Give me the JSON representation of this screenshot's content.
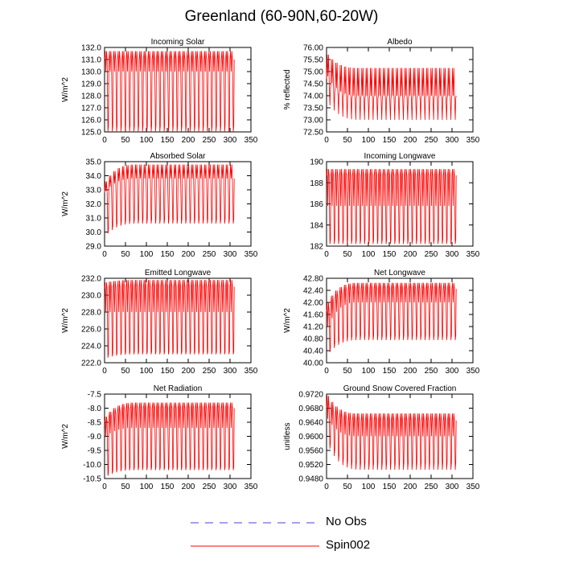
{
  "figure": {
    "title": "Greenland (60-90N,60-20W)"
  },
  "legend": [
    {
      "label": "No Obs",
      "color": "#4444cc",
      "style": "dashed"
    },
    {
      "label": "Spin002",
      "color": "#ff0000",
      "style": "solid"
    }
  ],
  "chart_data": [
    {
      "type": "line",
      "title": "Incoming Solar",
      "xlabel": "",
      "ylabel": "W/m^2",
      "xlim": [
        0,
        350
      ],
      "ylim": [
        125,
        132
      ],
      "yticks": [
        125,
        126,
        127,
        128,
        129,
        130,
        131,
        132
      ],
      "ytick_decimals": 1,
      "xticks": [
        0,
        50,
        100,
        150,
        200,
        250,
        300,
        350
      ],
      "series": [
        {
          "name": "Spin002",
          "color": "#ff0000",
          "cycles": 30,
          "x_end": 310,
          "peak_high": [
            131.7,
            131.7
          ],
          "peak_low": [
            131.0,
            131.0
          ],
          "trough_high": [
            125.5,
            125.5
          ],
          "trough_low": [
            125.0,
            125.0
          ],
          "mid_low": [
            130.0,
            130.0
          ]
        }
      ]
    },
    {
      "type": "line",
      "title": "Albedo",
      "xlabel": "",
      "ylabel": "% reflected",
      "xlim": [
        0,
        350
      ],
      "ylim": [
        72.5,
        76.0
      ],
      "yticks": [
        72.5,
        73.0,
        73.5,
        74.0,
        74.5,
        75.0,
        75.5,
        76.0
      ],
      "ytick_decimals": 2,
      "xticks": [
        0,
        50,
        100,
        150,
        200,
        250,
        300,
        350
      ],
      "series": [
        {
          "name": "Spin002",
          "color": "#ff0000",
          "cycles": 30,
          "x_end": 310,
          "peak_high": [
            75.7,
            75.15
          ],
          "peak_low": [
            74.7,
            74.0
          ],
          "trough_high": [
            74.3,
            73.9
          ],
          "trough_low": [
            73.6,
            73.0
          ],
          "mid_low": [
            74.8,
            74.0
          ]
        }
      ]
    },
    {
      "type": "line",
      "title": "Absorbed Solar",
      "xlabel": "",
      "ylabel": "W/m^2",
      "xlim": [
        0,
        350
      ],
      "ylim": [
        29,
        35
      ],
      "yticks": [
        29,
        30,
        31,
        32,
        33,
        34,
        35
      ],
      "ytick_decimals": 1,
      "xticks": [
        0,
        50,
        100,
        150,
        200,
        250,
        300,
        350
      ],
      "series": [
        {
          "name": "Spin002",
          "color": "#ff0000",
          "cycles": 30,
          "x_end": 310,
          "peak_high": [
            33.6,
            34.8
          ],
          "peak_low": [
            32.8,
            33.8
          ],
          "trough_high": [
            30.2,
            30.9
          ],
          "trough_low": [
            29.9,
            30.6
          ],
          "mid_low": [
            32.9,
            33.8
          ]
        }
      ]
    },
    {
      "type": "line",
      "title": "Incoming Longwave",
      "xlabel": "",
      "ylabel": "",
      "xlim": [
        0,
        350
      ],
      "ylim": [
        182,
        190
      ],
      "yticks": [
        182,
        184,
        186,
        188,
        190
      ],
      "ytick_decimals": 0,
      "xticks": [
        0,
        50,
        100,
        150,
        200,
        250,
        300,
        350
      ],
      "series": [
        {
          "name": "Spin002",
          "color": "#ff0000",
          "cycles": 30,
          "x_end": 310,
          "peak_high": [
            189.3,
            189.3
          ],
          "peak_low": [
            188.7,
            188.7
          ],
          "trough_high": [
            182.6,
            182.6
          ],
          "trough_low": [
            182.2,
            182.2
          ],
          "mid_low": [
            185.8,
            185.8
          ]
        }
      ]
    },
    {
      "type": "line",
      "title": "Emitted Longwave",
      "xlabel": "",
      "ylabel": "W/m^2",
      "xlim": [
        0,
        350
      ],
      "ylim": [
        222,
        232
      ],
      "yticks": [
        222,
        224,
        226,
        228,
        230,
        232
      ],
      "ytick_decimals": 1,
      "xticks": [
        0,
        50,
        100,
        150,
        200,
        250,
        300,
        350
      ],
      "series": [
        {
          "name": "Spin002",
          "color": "#ff0000",
          "cycles": 30,
          "x_end": 310,
          "peak_high": [
            231.5,
            231.8
          ],
          "peak_low": [
            230.8,
            231.0
          ],
          "trough_high": [
            223.0,
            223.3
          ],
          "trough_low": [
            222.6,
            223.0
          ],
          "mid_low": [
            228.0,
            228.0
          ]
        }
      ]
    },
    {
      "type": "line",
      "title": "Net Longwave",
      "xlabel": "",
      "ylabel": "W/m^2",
      "xlim": [
        0,
        350
      ],
      "ylim": [
        40.0,
        42.8
      ],
      "yticks": [
        40.0,
        40.4,
        40.8,
        41.2,
        41.6,
        42.0,
        42.4,
        42.8
      ],
      "ytick_decimals": 2,
      "xticks": [
        0,
        50,
        100,
        150,
        200,
        250,
        300,
        350
      ],
      "series": [
        {
          "name": "Spin002",
          "color": "#ff0000",
          "cycles": 30,
          "x_end": 310,
          "peak_high": [
            42.0,
            42.65
          ],
          "peak_low": [
            41.7,
            42.45
          ],
          "trough_high": [
            40.5,
            40.9
          ],
          "trough_low": [
            40.35,
            40.75
          ],
          "mid_low": [
            41.2,
            42.0
          ]
        }
      ]
    },
    {
      "type": "line",
      "title": "Net Radiation",
      "xlabel": "",
      "ylabel": "W/m^2",
      "xlim": [
        0,
        350
      ],
      "ylim": [
        -10.5,
        -7.5
      ],
      "yticks": [
        -10.5,
        -10.0,
        -9.5,
        -9.0,
        -8.5,
        -8.0,
        -7.5
      ],
      "ytick_decimals": 1,
      "xticks": [
        0,
        50,
        100,
        150,
        200,
        250,
        300,
        350
      ],
      "series": [
        {
          "name": "Spin002",
          "color": "#ff0000",
          "cycles": 30,
          "x_end": 310,
          "peak_high": [
            -8.3,
            -7.8
          ],
          "peak_low": [
            -8.5,
            -8.0
          ],
          "trough_high": [
            -10.3,
            -10.1
          ],
          "trough_low": [
            -10.4,
            -10.2
          ],
          "mid_low": [
            -9.0,
            -8.7
          ]
        }
      ]
    },
    {
      "type": "line",
      "title": "Ground Snow Covered Fraction",
      "xlabel": "",
      "ylabel": "unitless",
      "xlim": [
        0,
        350
      ],
      "ylim": [
        0.948,
        0.972
      ],
      "yticks": [
        0.948,
        0.952,
        0.956,
        0.96,
        0.964,
        0.968,
        0.972
      ],
      "ytick_decimals": 4,
      "xticks": [
        0,
        50,
        100,
        150,
        200,
        250,
        300,
        350
      ],
      "series": [
        {
          "name": "Spin002",
          "color": "#ff0000",
          "cycles": 30,
          "x_end": 310,
          "peak_high": [
            0.9715,
            0.9665
          ],
          "peak_low": [
            0.968,
            0.9645
          ],
          "trough_high": [
            0.958,
            0.9525
          ],
          "trough_low": [
            0.9565,
            0.9505
          ],
          "mid_low": [
            0.965,
            0.96
          ]
        }
      ]
    }
  ]
}
